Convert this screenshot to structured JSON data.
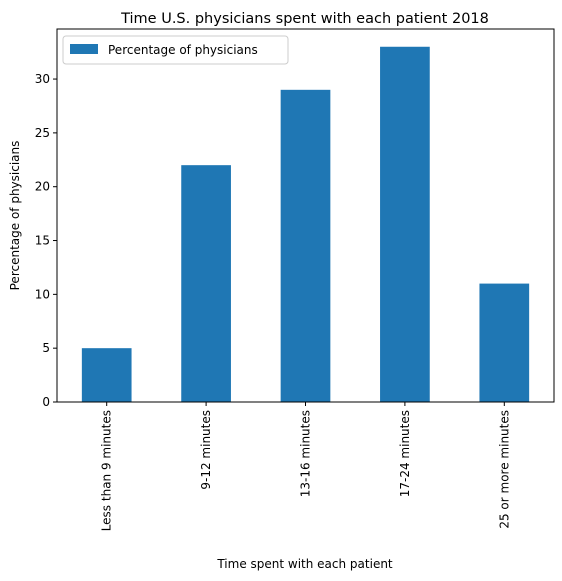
{
  "chart_data": {
    "type": "bar",
    "title": "Time U.S. physicians spent with each patient 2018",
    "xlabel": "Time spent with each patient",
    "ylabel": "Percentage of physicians",
    "categories": [
      "Less than 9 minutes",
      "9-12 minutes",
      "13-16 minutes",
      "17-24 minutes",
      "25 or more minutes"
    ],
    "series": [
      {
        "name": "Percentage of physicians",
        "values": [
          5,
          22,
          29,
          33,
          11
        ]
      }
    ],
    "ylim": [
      0,
      34.65
    ],
    "yticks": [
      0,
      5,
      10,
      15,
      20,
      25,
      30
    ],
    "bar_color": "#1f77b4",
    "legend_position": "top-left",
    "grid": false
  }
}
